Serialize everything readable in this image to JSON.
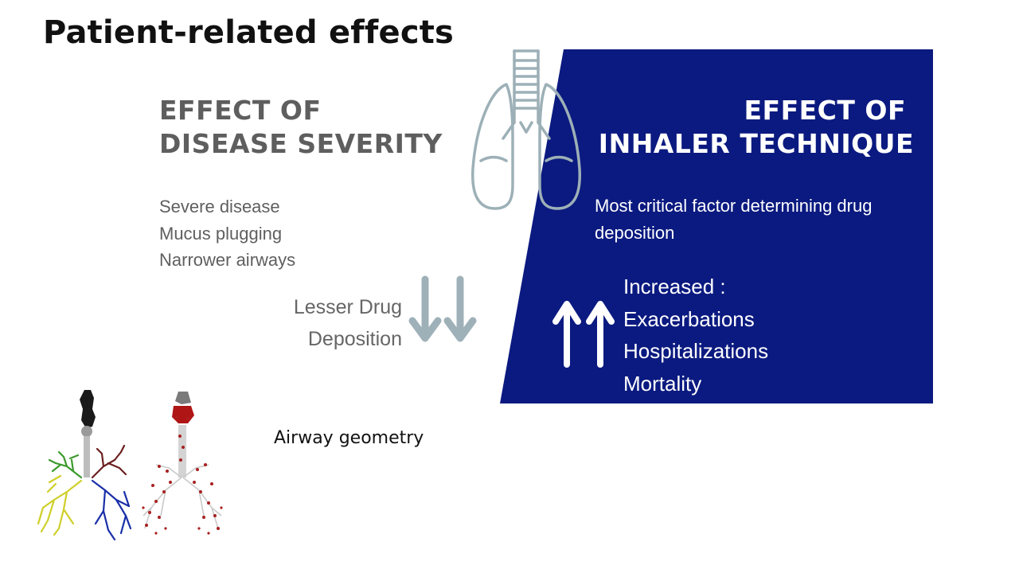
{
  "slide": {
    "title": "Patient-related effects",
    "airway_caption": "Airway geometry"
  },
  "left": {
    "heading_line1": "EFFECT OF",
    "heading_line2": "DISEASE SEVERITY",
    "items": [
      "Severe disease",
      "Mucus plugging",
      "Narrower airways"
    ],
    "result_line1": "Lesser Drug",
    "result_line2": "Deposition"
  },
  "right": {
    "heading_line1": "EFFECT OF",
    "heading_line2": "INHALER TECHNIQUE",
    "description": "Most critical factor determining drug deposition",
    "increased_label": "Increased :",
    "increased_items": [
      "Exacerbations",
      "Hospitalizations",
      "Mortality"
    ]
  },
  "icons": {
    "lungs": "lungs-outline-icon",
    "down_arrows": "double-down-arrow-icon",
    "up_arrows": "double-up-arrow-icon"
  },
  "colors": {
    "panel_blue": "#0b1a80",
    "heading_gray": "#5e5e5e",
    "arrow_gray": "#9fb1b8",
    "lung_outline": "#9db0b7"
  }
}
